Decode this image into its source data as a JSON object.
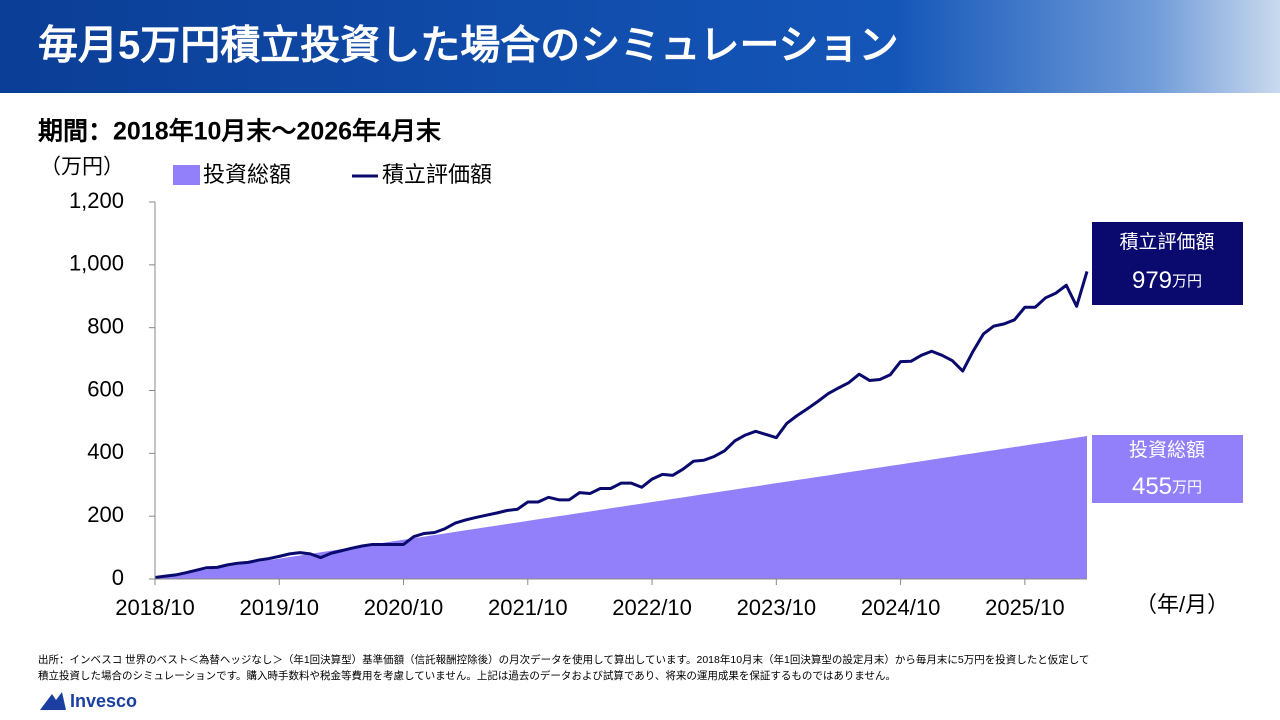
{
  "chart_data": {
    "type": "area_line",
    "title": "毎月5万円積立投資した場合のシミュレーション",
    "subtitle": "期間：2018年10月末～2026年4月末",
    "y_label": "（万円）",
    "x_label": "（年/月）",
    "x": [
      "2018/10",
      "2018/11",
      "2018/12",
      "2019/1",
      "2019/2",
      "2019/3",
      "2019/4",
      "2019/5",
      "2019/6",
      "2019/7",
      "2019/8",
      "2019/9",
      "2019/10",
      "2019/11",
      "2019/12",
      "2020/1",
      "2020/2",
      "2020/3",
      "2020/4",
      "2020/5",
      "2020/6",
      "2020/7",
      "2020/8",
      "2020/9",
      "2020/10",
      "2020/11",
      "2020/12",
      "2021/1",
      "2021/2",
      "2021/3",
      "2021/4",
      "2021/5",
      "2021/6",
      "2021/7",
      "2021/8",
      "2021/9",
      "2021/10",
      "2021/11",
      "2021/12",
      "2022/1",
      "2022/2",
      "2022/3",
      "2022/4",
      "2022/5",
      "2022/6",
      "2022/7",
      "2022/8",
      "2022/9",
      "2022/10",
      "2022/11",
      "2022/12",
      "2023/1",
      "2023/2",
      "2023/3",
      "2023/4",
      "2023/5",
      "2023/6",
      "2023/7",
      "2023/8",
      "2023/9",
      "2023/10",
      "2023/11",
      "2023/12",
      "2024/1",
      "2024/2",
      "2024/3",
      "2024/4",
      "2024/5",
      "2024/6",
      "2024/7",
      "2024/8",
      "2024/9",
      "2024/10",
      "2024/11",
      "2024/12",
      "2025/1",
      "2025/2",
      "2025/3",
      "2025/4",
      "2025/5",
      "2025/6",
      "2025/7",
      "2025/8",
      "2025/9",
      "2025/10",
      "2025/11",
      "2025/12",
      "2026/1",
      "2026/2",
      "2026/3",
      "2026/4"
    ],
    "xticks": [
      "2018/10",
      "2019/10",
      "2020/10",
      "2021/10",
      "2022/10",
      "2023/10",
      "2024/10",
      "2025/10"
    ],
    "ylim": [
      0,
      1200
    ],
    "yticks": [
      0,
      200,
      400,
      600,
      800,
      {
        "value": 1000,
        "label": "1,000"
      },
      {
        "value": 1200,
        "label": "1,200"
      }
    ],
    "series": [
      {
        "name": "投資総額",
        "kind": "area",
        "color": "#9280fb",
        "values": [
          5,
          10,
          15,
          20,
          25,
          30,
          35,
          40,
          45,
          50,
          55,
          60,
          65,
          70,
          75,
          80,
          85,
          90,
          95,
          100,
          105,
          110,
          115,
          120,
          125,
          130,
          135,
          140,
          145,
          150,
          155,
          160,
          165,
          170,
          175,
          180,
          185,
          190,
          195,
          200,
          205,
          210,
          215,
          220,
          225,
          230,
          235,
          240,
          245,
          250,
          255,
          260,
          265,
          270,
          275,
          280,
          285,
          290,
          295,
          300,
          305,
          310,
          315,
          320,
          325,
          330,
          335,
          340,
          345,
          350,
          355,
          360,
          365,
          370,
          375,
          380,
          385,
          390,
          395,
          400,
          405,
          410,
          415,
          420,
          425,
          430,
          435,
          440,
          445,
          450,
          455
        ]
      },
      {
        "name": "積立評価額",
        "kind": "line",
        "color": "#0a0a6e",
        "values": [
          5,
          9,
          13,
          20,
          28,
          36,
          37,
          45,
          50,
          53,
          60,
          65,
          72,
          80,
          84,
          80,
          68,
          82,
          90,
          98,
          105,
          110,
          110,
          110,
          110,
          135,
          145,
          148,
          160,
          178,
          188,
          196,
          203,
          210,
          218,
          222,
          245,
          245,
          260,
          252,
          252,
          275,
          272,
          288,
          288,
          305,
          305,
          292,
          318,
          333,
          330,
          350,
          375,
          378,
          390,
          408,
          440,
          458,
          470,
          460,
          450,
          495,
          520,
          542,
          565,
          590,
          608,
          625,
          652,
          632,
          635,
          650,
          692,
          693,
          712,
          725,
          712,
          695,
          662,
          725,
          780,
          805,
          812,
          825,
          865,
          865,
          895,
          910,
          935,
          868,
          979
        ]
      }
    ],
    "end_labels": [
      {
        "name": "積立評価額",
        "unit": "万円",
        "color": "#0a0a6e"
      },
      {
        "name": "投資総額",
        "unit": "万円",
        "color": "#9280fb"
      }
    ],
    "footnote": [
      "出所：インベスコ 世界のベスト＜為替ヘッジなし＞（年1回決算型）基準価額（信託報酬控除後）の月次データを使用して算出しています。2018年10月末（年1回決算型の設定月末）から毎月末に5万円を投資したと仮定して",
      "積立投資した場合のシミュレーションです。購入時手数料や税金等費用を考慮していません。上記は過去のデータおよび試算であり、将来の運用成果を保証するものではありません。"
    ],
    "logo": "Invesco"
  }
}
